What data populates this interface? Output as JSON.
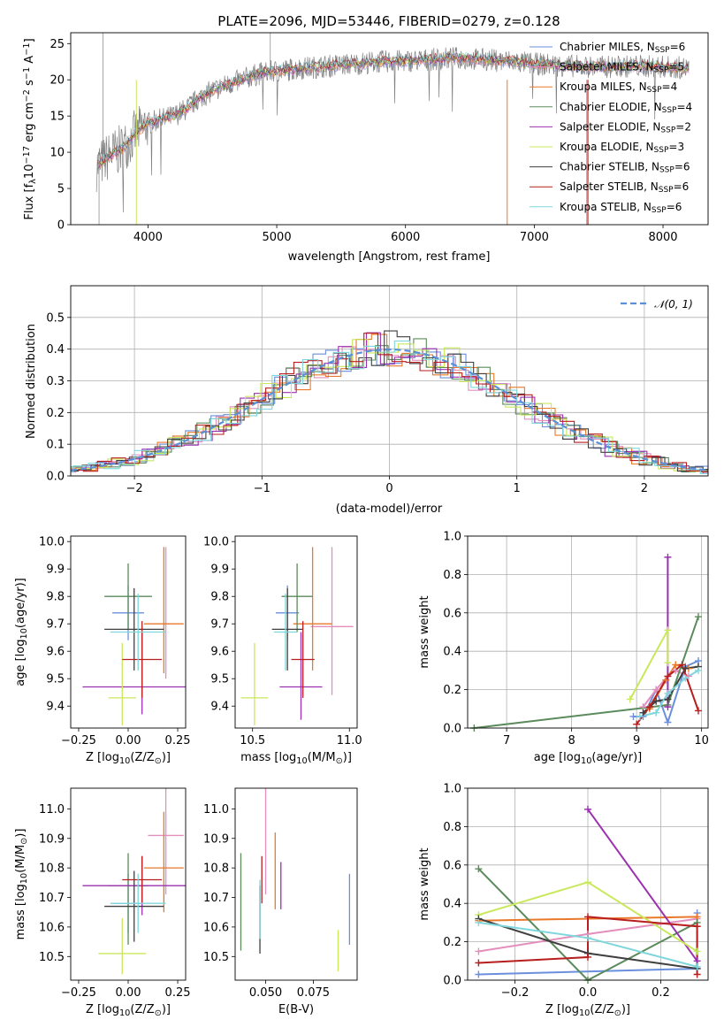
{
  "colors": {
    "Chabrier MILES": "#6a8fdc",
    "Salpeter MILES": "#e48ebc",
    "Kroupa MILES": "#e9792a",
    "Chabrier ELODIE": "#5b8a5b",
    "Salpeter ELODIE": "#9b30b0",
    "Kroupa ELODIE": "#c9e85a",
    "Chabrier STELIB": "#3f3f3f",
    "Salpeter STELIB": "#b81e1e",
    "Kroupa STELIB": "#7fd6dc",
    "gauss": "#5b8fd6"
  },
  "legend_spectrum": [
    {
      "name": "Chabrier MILES",
      "label": "Chabrier MILES, N",
      "sub": "SSP",
      "tail": "=6"
    },
    {
      "name": "Salpeter MILES",
      "label": "Salpeter MILES, N",
      "sub": "SSP",
      "tail": "=5"
    },
    {
      "name": "Kroupa MILES",
      "label": "Kroupa MILES, N",
      "sub": "SSP",
      "tail": "=4"
    },
    {
      "name": "Chabrier ELODIE",
      "label": "Chabrier ELODIE, N",
      "sub": "SSP",
      "tail": "=4"
    },
    {
      "name": "Salpeter ELODIE",
      "label": "Salpeter ELODIE, N",
      "sub": "SSP",
      "tail": "=2"
    },
    {
      "name": "Kroupa ELODIE",
      "label": "Kroupa ELODIE, N",
      "sub": "SSP",
      "tail": "=3"
    },
    {
      "name": "Chabrier STELIB",
      "label": "Chabrier STELIB, N",
      "sub": "SSP",
      "tail": "=6"
    },
    {
      "name": "Salpeter STELIB",
      "label": "Salpeter STELIB, N",
      "sub": "SSP",
      "tail": "=6"
    },
    {
      "name": "Kroupa STELIB",
      "label": "Kroupa STELIB, N",
      "sub": "SSP",
      "tail": "=6"
    }
  ],
  "chart_data": [
    {
      "type": "line",
      "title": "PLATE=2096, MJD=53446, FIBERID=0279, z=0.128",
      "xlabel": "wavelength [Angstrom, rest frame]",
      "ylabel_main": "Flux [f",
      "ylabel_unit": "10",
      "ylabel_exp": "−17",
      "ylabel_rest": " erg cm",
      "ylabel_sup2": "−2",
      "ylabel_s": " s",
      "ylabel_sup1": "−1",
      "ylabel_A": " A",
      "ylabel_sup1b": "−1",
      "ylabel_end": "]",
      "xlim": [
        3400,
        8350
      ],
      "ylim": [
        0,
        26.5
      ],
      "xticks": [
        4000,
        5000,
        6000,
        7000,
        8000
      ],
      "yticks": [
        0,
        5,
        10,
        15,
        20,
        25
      ],
      "continuum": [
        [
          3600,
          8.0
        ],
        [
          3700,
          9.5
        ],
        [
          3800,
          10.5
        ],
        [
          3900,
          12.5
        ],
        [
          4000,
          14.0
        ],
        [
          4100,
          14.5
        ],
        [
          4200,
          15.0
        ],
        [
          4300,
          16.0
        ],
        [
          4400,
          17.5
        ],
        [
          4500,
          18.5
        ],
        [
          4600,
          19.2
        ],
        [
          4700,
          19.8
        ],
        [
          4800,
          20.5
        ],
        [
          4900,
          21.0
        ],
        [
          5000,
          21.2
        ],
        [
          5200,
          21.6
        ],
        [
          5400,
          21.9
        ],
        [
          5600,
          22.2
        ],
        [
          5800,
          22.5
        ],
        [
          6000,
          22.6
        ],
        [
          6200,
          22.8
        ],
        [
          6400,
          23.0
        ],
        [
          6600,
          22.8
        ],
        [
          6800,
          22.6
        ],
        [
          7000,
          22.2
        ],
        [
          7200,
          22.0
        ],
        [
          7400,
          21.8
        ],
        [
          7600,
          21.8
        ],
        [
          7800,
          21.9
        ],
        [
          8000,
          21.8
        ],
        [
          8200,
          21.6
        ]
      ]
    },
    {
      "type": "line",
      "xlabel": "(data-model)/error",
      "ylabel": "Normed distribution",
      "xlim": [
        -2.5,
        2.5
      ],
      "ylim": [
        0,
        0.6
      ],
      "xticks": [
        -2,
        -1,
        0,
        1,
        2
      ],
      "yticks": [
        0.0,
        0.1,
        0.2,
        0.3,
        0.4,
        0.5
      ],
      "legend": "𝒩(0, 1)",
      "grid": true
    },
    {
      "type": "scatter",
      "xlabel": "Z [log",
      "xlabel_sub": "10",
      "xlabel_rest": "(Z/Z",
      "xlabel_sun": "⊙",
      "xlabel_end": ")]",
      "ylabel": "age  [log",
      "ylabel_sub": "10",
      "ylabel_rest": "(age/yr)]",
      "xlim": [
        -0.29,
        0.29
      ],
      "ylim": [
        9.32,
        10.02
      ],
      "xticks": [
        -0.25,
        0.0,
        0.25
      ],
      "yticks": [
        9.4,
        9.5,
        9.6,
        9.7,
        9.8,
        9.9,
        10.0
      ],
      "points": [
        {
          "series": "Chabrier MILES",
          "x": 0.0,
          "y": 9.74,
          "xe": 0.08,
          "ye": [
            0.1,
            0.1
          ]
        },
        {
          "series": "Salpeter MILES",
          "x": 0.19,
          "y": 9.7,
          "xe": 0.02,
          "ye": [
            0.2,
            0.28
          ]
        },
        {
          "series": "Kroupa MILES",
          "x": 0.18,
          "y": 9.7,
          "xe": 0.1,
          "ye": [
            0.18,
            0.28
          ]
        },
        {
          "series": "Chabrier ELODIE",
          "x": 0.0,
          "y": 9.8,
          "xe": 0.12,
          "ye": [
            0.12,
            0.12
          ]
        },
        {
          "series": "Salpeter ELODIE",
          "x": 0.07,
          "y": 9.47,
          "xe": 0.3,
          "ye": [
            0.1,
            0.2
          ]
        },
        {
          "series": "Kroupa ELODIE",
          "x": -0.03,
          "y": 9.43,
          "xe": 0.07,
          "ye": [
            0.1,
            0.2
          ]
        },
        {
          "series": "Chabrier STELIB",
          "x": 0.03,
          "y": 9.68,
          "xe": 0.15,
          "ye": [
            0.15,
            0.15
          ]
        },
        {
          "series": "Salpeter STELIB",
          "x": 0.07,
          "y": 9.57,
          "xe": 0.1,
          "ye": [
            0.14,
            0.14
          ]
        },
        {
          "series": "Kroupa STELIB",
          "x": 0.05,
          "y": 9.67,
          "xe": 0.14,
          "ye": [
            0.14,
            0.14
          ]
        }
      ]
    },
    {
      "type": "scatter",
      "xlabel": "mass [log",
      "xlabel_sub": "10",
      "xlabel_rest": "(M/M",
      "xlabel_sun": "⊙",
      "xlabel_end": ")]",
      "xlim": [
        10.41,
        11.04
      ],
      "ylim": [
        9.32,
        10.02
      ],
      "xticks": [
        10.5,
        11.0
      ],
      "yticks": [
        9.4,
        9.5,
        9.6,
        9.7,
        9.8,
        9.9,
        10.0
      ],
      "points": [
        {
          "series": "Chabrier MILES",
          "x": 10.68,
          "y": 9.74,
          "xe": 0.06,
          "ye": [
            0.1,
            0.1
          ]
        },
        {
          "series": "Salpeter MILES",
          "x": 10.91,
          "y": 9.69,
          "xe": 0.11,
          "ye": [
            0.25,
            0.29
          ]
        },
        {
          "series": "Kroupa MILES",
          "x": 10.81,
          "y": 9.7,
          "xe": 0.1,
          "ye": [
            0.17,
            0.28
          ]
        },
        {
          "series": "Chabrier ELODIE",
          "x": 10.73,
          "y": 9.8,
          "xe": 0.08,
          "ye": [
            0.13,
            0.12
          ]
        },
        {
          "series": "Salpeter ELODIE",
          "x": 10.75,
          "y": 9.47,
          "xe": 0.11,
          "ye": [
            0.12,
            0.2
          ]
        },
        {
          "series": "Kroupa ELODIE",
          "x": 10.51,
          "y": 9.43,
          "xe": 0.07,
          "ye": [
            0.1,
            0.2
          ]
        },
        {
          "series": "Chabrier STELIB",
          "x": 10.68,
          "y": 9.68,
          "xe": 0.08,
          "ye": [
            0.15,
            0.15
          ]
        },
        {
          "series": "Salpeter STELIB",
          "x": 10.76,
          "y": 9.57,
          "xe": 0.06,
          "ye": [
            0.14,
            0.14
          ]
        },
        {
          "series": "Kroupa STELIB",
          "x": 10.67,
          "y": 9.67,
          "xe": 0.06,
          "ye": [
            0.14,
            0.14
          ]
        }
      ]
    },
    {
      "type": "line",
      "xlabel": "age  [log",
      "xlabel_sub": "10",
      "xlabel_rest": "(age/yr)]",
      "ylabel": "mass weight",
      "xlim": [
        6.4,
        10.1
      ],
      "ylim": [
        0,
        1.0
      ],
      "xticks": [
        7,
        8,
        9,
        10
      ],
      "yticks": [
        0.0,
        0.2,
        0.4,
        0.6,
        0.8,
        1.0
      ],
      "grid": true,
      "series": [
        {
          "name": "Chabrier MILES",
          "x": [
            8.95,
            9.1,
            9.3,
            9.48,
            9.75,
            9.95
          ],
          "y": [
            0.06,
            0.06,
            0.2,
            0.03,
            0.32,
            0.35
          ]
        },
        {
          "name": "Salpeter MILES",
          "x": [
            9.1,
            9.3,
            9.48,
            9.6,
            9.8
          ],
          "y": [
            0.11,
            0.2,
            0.27,
            0.3,
            0.27
          ]
        },
        {
          "name": "Kroupa MILES",
          "x": [
            9.2,
            9.45,
            9.6,
            9.8
          ],
          "y": [
            0.1,
            0.25,
            0.33,
            0.31
          ]
        },
        {
          "name": "Chabrier ELODIE",
          "x": [
            6.5,
            9.48,
            9.95
          ],
          "y": [
            0.0,
            0.12,
            0.58
          ]
        },
        {
          "name": "Salpeter ELODIE",
          "x": [
            9.48,
            9.48
          ],
          "y": [
            0.89,
            0.11
          ]
        },
        {
          "name": "Kroupa ELODIE",
          "x": [
            8.9,
            9.48,
            9.48
          ],
          "y": [
            0.15,
            0.51,
            0.34
          ]
        },
        {
          "name": "Chabrier STELIB",
          "x": [
            9.1,
            9.3,
            9.48,
            9.75,
            9.95
          ],
          "y": [
            0.08,
            0.14,
            0.15,
            0.31,
            0.32
          ]
        },
        {
          "name": "Salpeter STELIB",
          "x": [
            9.0,
            9.2,
            9.48,
            9.7,
            9.95
          ],
          "y": [
            0.02,
            0.11,
            0.27,
            0.33,
            0.09
          ]
        },
        {
          "name": "Kroupa STELIB",
          "x": [
            9.05,
            9.3,
            9.48,
            9.75,
            9.95
          ],
          "y": [
            0.06,
            0.08,
            0.18,
            0.26,
            0.3
          ]
        }
      ]
    },
    {
      "type": "scatter",
      "xlabel": "Z [log",
      "xlabel_sub": "10",
      "xlabel_rest": "(Z/Z",
      "xlabel_sun": "⊙",
      "xlabel_end": ")]",
      "ylabel": "mass [log",
      "ylabel_sub": "10",
      "ylabel_rest": "(M/M",
      "ylabel_sun": "⊙",
      "ylabel_end": ")]",
      "xlim": [
        -0.29,
        0.29
      ],
      "ylim": [
        10.42,
        11.07
      ],
      "xticks": [
        -0.25,
        0.0,
        0.25
      ],
      "yticks": [
        10.5,
        10.6,
        10.7,
        10.8,
        10.9,
        11.0
      ],
      "points": [
        {
          "series": "Chabrier MILES",
          "x": 0.0,
          "y": 10.68,
          "xe": 0.08,
          "ye": [
            0.1,
            0.1
          ]
        },
        {
          "series": "Salpeter MILES",
          "x": 0.19,
          "y": 10.91,
          "xe": 0.09,
          "ye": [
            0.2,
            0.21
          ]
        },
        {
          "series": "Kroupa MILES",
          "x": 0.18,
          "y": 10.8,
          "xe": 0.1,
          "ye": [
            0.15,
            0.19
          ]
        },
        {
          "series": "Chabrier ELODIE",
          "x": 0.0,
          "y": 10.74,
          "xe": 0.1,
          "ye": [
            0.2,
            0.11
          ]
        },
        {
          "series": "Salpeter ELODIE",
          "x": 0.07,
          "y": 10.74,
          "xe": 0.3,
          "ye": [
            0.1,
            0.1
          ]
        },
        {
          "series": "Kroupa ELODIE",
          "x": -0.03,
          "y": 10.51,
          "xe": 0.12,
          "ye": [
            0.07,
            0.12
          ]
        },
        {
          "series": "Chabrier STELIB",
          "x": 0.03,
          "y": 10.67,
          "xe": 0.15,
          "ye": [
            0.12,
            0.12
          ]
        },
        {
          "series": "Salpeter STELIB",
          "x": 0.07,
          "y": 10.76,
          "xe": 0.1,
          "ye": [
            0.08,
            0.08
          ]
        },
        {
          "series": "Kroupa STELIB",
          "x": 0.05,
          "y": 10.68,
          "xe": 0.14,
          "ye": [
            0.1,
            0.1
          ]
        }
      ]
    },
    {
      "type": "scatter",
      "xlabel": "E(B-V)",
      "xlim": [
        0.034,
        0.098
      ],
      "ylim": [
        10.42,
        11.07
      ],
      "xticks": [
        0.05,
        0.075
      ],
      "xticklabels": [
        "0.050",
        "0.075"
      ],
      "yticks": [
        10.5,
        10.6,
        10.7,
        10.8,
        10.9,
        11.0
      ],
      "points": [
        {
          "series": "Chabrier MILES",
          "x": 0.094,
          "y": 10.66,
          "ye": [
            0.12,
            0.12
          ]
        },
        {
          "series": "Salpeter MILES",
          "x": 0.05,
          "y": 10.91,
          "ye": [
            0.2,
            0.22
          ]
        },
        {
          "series": "Kroupa MILES",
          "x": 0.055,
          "y": 10.79,
          "ye": [
            0.13,
            0.13
          ]
        },
        {
          "series": "Chabrier ELODIE",
          "x": 0.037,
          "y": 10.69,
          "ye": [
            0.17,
            0.16
          ]
        },
        {
          "series": "Salpeter ELODIE",
          "x": 0.058,
          "y": 10.74,
          "ye": [
            0.08,
            0.08
          ]
        },
        {
          "series": "Kroupa ELODIE",
          "x": 0.088,
          "y": 10.52,
          "ye": [
            0.07,
            0.07
          ]
        },
        {
          "series": "Chabrier STELIB",
          "x": 0.047,
          "y": 10.63,
          "ye": [
            0.12,
            0.11
          ]
        },
        {
          "series": "Salpeter STELIB",
          "x": 0.048,
          "y": 10.76,
          "ye": [
            0.08,
            0.08
          ]
        },
        {
          "series": "Kroupa STELIB",
          "x": 0.047,
          "y": 10.66,
          "ye": [
            0.1,
            0.1
          ]
        }
      ]
    },
    {
      "type": "line",
      "xlabel": "Z [log",
      "xlabel_sub": "10",
      "xlabel_rest": "(Z/Z",
      "xlabel_sun": "⊙",
      "xlabel_end": ")]",
      "ylabel": "mass weight",
      "xlim": [
        -0.33,
        0.33
      ],
      "ylim": [
        0,
        1.0
      ],
      "xticks": [
        -0.2,
        0.0,
        0.2
      ],
      "xticklabels": [
        "−0.2",
        "0.0",
        "0.2"
      ],
      "yticks": [
        0.0,
        0.2,
        0.4,
        0.6,
        0.8,
        1.0
      ],
      "grid": true,
      "series": [
        {
          "name": "Chabrier MILES",
          "x": [
            -0.3,
            0.3,
            0.3
          ],
          "y": [
            0.03,
            0.06,
            0.35
          ]
        },
        {
          "name": "Salpeter MILES",
          "x": [
            -0.3,
            0.0,
            0.3
          ],
          "y": [
            0.15,
            0.24,
            0.32
          ]
        },
        {
          "name": "Kroupa MILES",
          "x": [
            -0.3,
            0.3,
            0.3
          ],
          "y": [
            0.31,
            0.33,
            0.28
          ]
        },
        {
          "name": "Chabrier ELODIE",
          "x": [
            -0.3,
            0.0,
            0.3
          ],
          "y": [
            0.58,
            0.0,
            0.3
          ]
        },
        {
          "name": "Salpeter ELODIE",
          "x": [
            0.0,
            0.3
          ],
          "y": [
            0.89,
            0.1
          ]
        },
        {
          "name": "Kroupa ELODIE",
          "x": [
            -0.3,
            0.0,
            0.3
          ],
          "y": [
            0.34,
            0.51,
            0.15
          ]
        },
        {
          "name": "Chabrier STELIB",
          "x": [
            -0.3,
            0.0,
            0.3
          ],
          "y": [
            0.32,
            0.14,
            0.06
          ]
        },
        {
          "name": "Salpeter STELIB",
          "x": [
            -0.3,
            0.0,
            0.0,
            0.3,
            0.3
          ],
          "y": [
            0.09,
            0.12,
            0.33,
            0.28,
            0.03
          ]
        },
        {
          "name": "Kroupa STELIB",
          "x": [
            -0.3,
            0.0,
            0.3
          ],
          "y": [
            0.3,
            0.22,
            0.07
          ]
        }
      ]
    }
  ]
}
